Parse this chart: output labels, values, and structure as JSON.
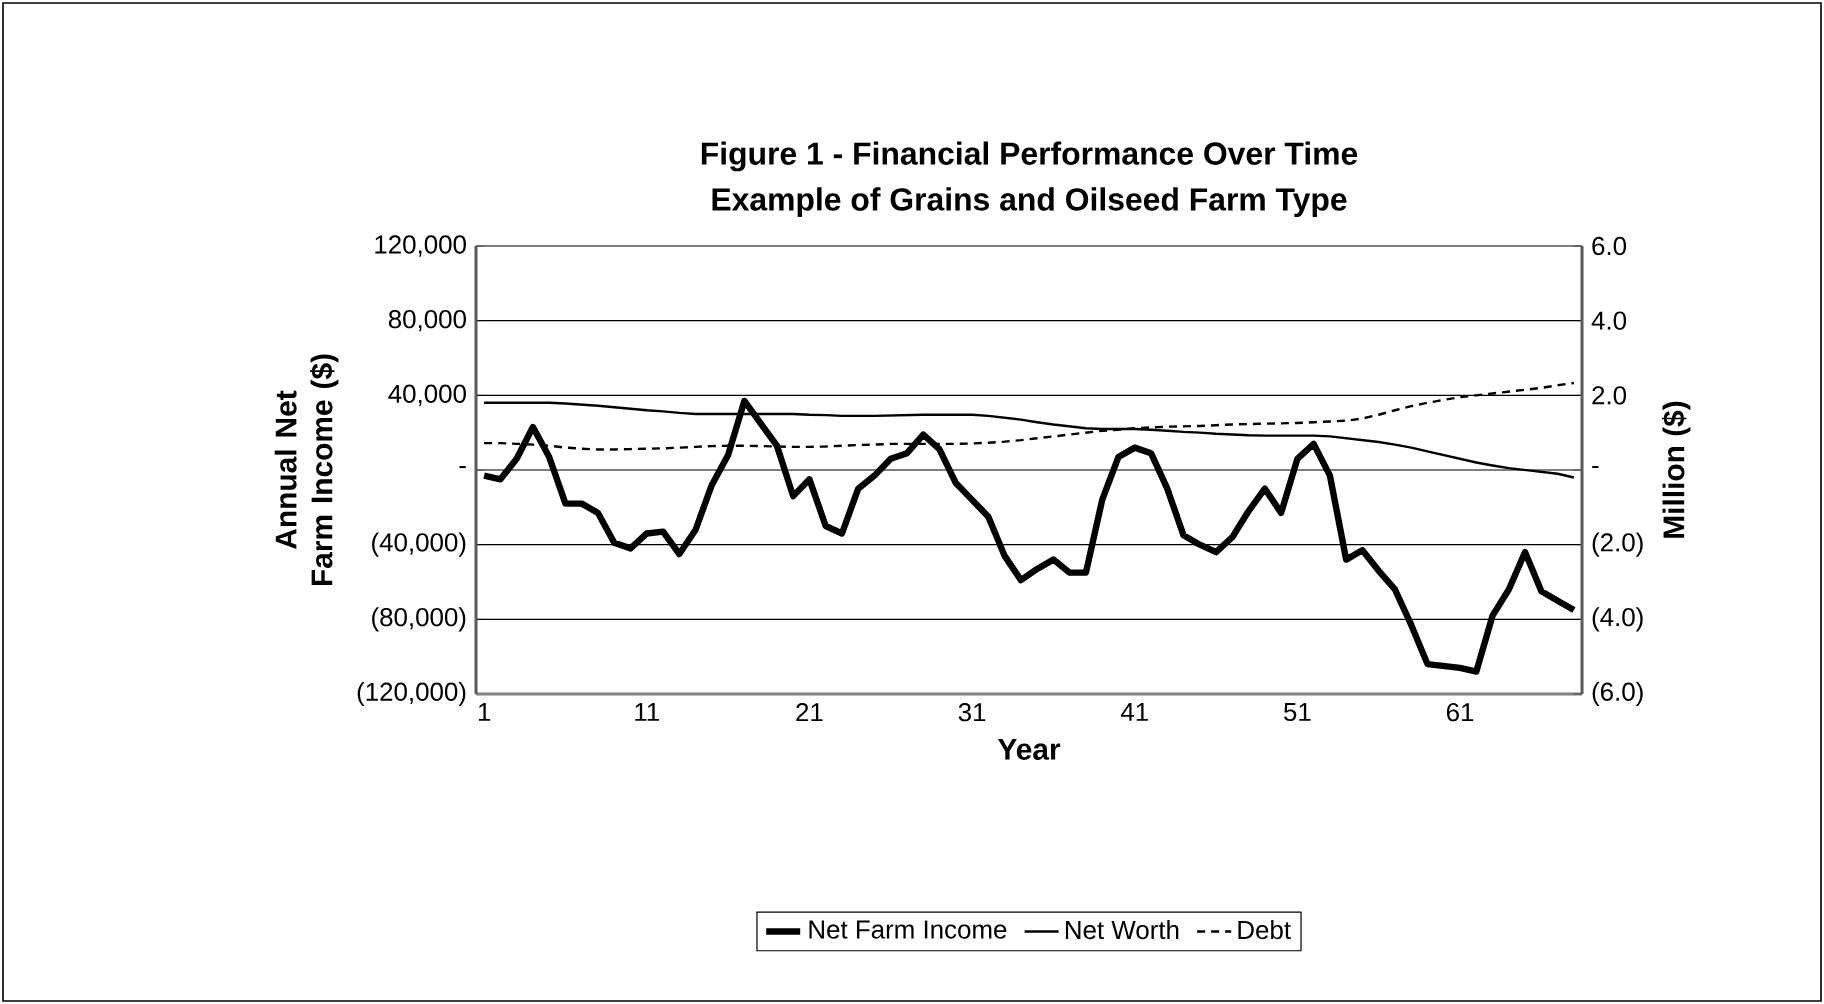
{
  "chart_data": {
    "type": "line",
    "title": "Figure 1 - Financial Performance Over Time",
    "subtitle": "Example of Grains and Oilseed Farm Type",
    "xlabel": "Year",
    "ylabel": "Annual Net Farm Income ($)",
    "y2label": "Million ($)",
    "x": [
      1,
      2,
      3,
      4,
      5,
      6,
      7,
      8,
      9,
      10,
      11,
      12,
      13,
      14,
      15,
      16,
      17,
      18,
      19,
      20,
      21,
      22,
      23,
      24,
      25,
      26,
      27,
      28,
      29,
      30,
      31,
      32,
      33,
      34,
      35,
      36,
      37,
      38,
      39,
      40,
      41,
      42,
      43,
      44,
      45,
      46,
      47,
      48,
      49,
      50,
      51,
      52,
      53,
      54,
      55,
      56,
      57,
      58,
      59,
      60,
      61,
      62,
      63,
      64,
      65,
      66,
      67,
      68
    ],
    "series": [
      {
        "name": "Net Farm Income",
        "color": "#000000",
        "line_style": "solid",
        "values": [
          -3000,
          -5000,
          6000,
          23000,
          7000,
          -18000,
          -18000,
          -23000,
          -39000,
          -42000,
          -34000,
          -33000,
          -45000,
          -32000,
          -8000,
          8000,
          37000,
          25000,
          13000,
          -14000,
          -5000,
          -30000,
          -34000,
          -10000,
          -3000,
          6000,
          9000,
          19000,
          11000,
          -7000,
          -16000,
          -25000,
          -46000,
          -59000,
          -53000,
          -48000,
          -55000,
          -55000,
          -16000,
          7000,
          12000,
          9000,
          -10000,
          -35000,
          -40000,
          -44000,
          -36000,
          -22000,
          -10000,
          -23000,
          6000,
          14000,
          -3000,
          -48000,
          -43000,
          -54000,
          -64000,
          -83000,
          -104000,
          -105000,
          -106000,
          -108000,
          -78000,
          -64000,
          -44000,
          -65000,
          -70000,
          -75000
        ]
      },
      {
        "name": "Net Worth",
        "color": "#000000",
        "line_style": "solid",
        "axis": "y2",
        "values": [
          1.8,
          1.8,
          1.8,
          1.8,
          1.8,
          1.78,
          1.75,
          1.72,
          1.68,
          1.64,
          1.6,
          1.57,
          1.53,
          1.5,
          1.5,
          1.5,
          1.5,
          1.5,
          1.5,
          1.5,
          1.48,
          1.47,
          1.45,
          1.45,
          1.45,
          1.46,
          1.47,
          1.48,
          1.48,
          1.48,
          1.48,
          1.45,
          1.4,
          1.35,
          1.28,
          1.22,
          1.17,
          1.12,
          1.1,
          1.1,
          1.1,
          1.08,
          1.05,
          1.02,
          1.0,
          0.97,
          0.95,
          0.93,
          0.92,
          0.92,
          0.92,
          0.92,
          0.9,
          0.85,
          0.8,
          0.75,
          0.68,
          0.6,
          0.5,
          0.4,
          0.3,
          0.2,
          0.12,
          0.05,
          0.0,
          -0.05,
          -0.1,
          -0.2
        ]
      },
      {
        "name": "Debt",
        "color": "#000000",
        "line_style": "dashed",
        "axis": "y2",
        "values": [
          0.72,
          0.72,
          0.7,
          0.68,
          0.65,
          0.6,
          0.57,
          0.55,
          0.55,
          0.56,
          0.57,
          0.58,
          0.6,
          0.62,
          0.64,
          0.65,
          0.65,
          0.64,
          0.63,
          0.62,
          0.62,
          0.63,
          0.65,
          0.67,
          0.68,
          0.7,
          0.7,
          0.7,
          0.7,
          0.7,
          0.71,
          0.73,
          0.76,
          0.8,
          0.85,
          0.9,
          0.95,
          1.0,
          1.05,
          1.08,
          1.12,
          1.14,
          1.16,
          1.17,
          1.18,
          1.2,
          1.22,
          1.23,
          1.24,
          1.25,
          1.26,
          1.28,
          1.3,
          1.32,
          1.38,
          1.48,
          1.6,
          1.71,
          1.8,
          1.88,
          1.95,
          2.0,
          2.05,
          2.1,
          2.15,
          2.2,
          2.27,
          2.33
        ]
      }
    ],
    "xlim": [
      0.5,
      68.5
    ],
    "xticks": [
      1,
      11,
      21,
      31,
      41,
      51,
      61
    ],
    "ylim": [
      -120000,
      120000
    ],
    "yticks": [
      {
        "value": -120000,
        "label": "(120,000)"
      },
      {
        "value": -80000,
        "label": "(80,000)"
      },
      {
        "value": -40000,
        "label": "(40,000)"
      },
      {
        "value": 0,
        "label": "-"
      },
      {
        "value": 40000,
        "label": "40,000"
      },
      {
        "value": 80000,
        "label": "80,000"
      },
      {
        "value": 120000,
        "label": "120,000"
      }
    ],
    "y2lim": [
      -6,
      6
    ],
    "y2ticks": [
      {
        "value": -6,
        "label": "(6.0)"
      },
      {
        "value": -4,
        "label": "(4.0)"
      },
      {
        "value": -2,
        "label": "(2.0)"
      },
      {
        "value": 0,
        "label": "-"
      },
      {
        "value": 2,
        "label": "2.0"
      },
      {
        "value": 4,
        "label": "4.0"
      },
      {
        "value": 6,
        "label": "6.0"
      }
    ],
    "grid": "y",
    "legend": "bottom"
  }
}
